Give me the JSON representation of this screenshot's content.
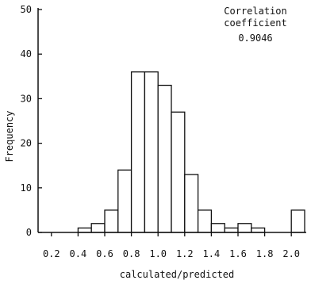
{
  "chart_data": {
    "type": "bar",
    "bin_width": 0.1,
    "bins": [
      {
        "x0": 0.4,
        "x1": 0.5,
        "value": 1
      },
      {
        "x0": 0.5,
        "x1": 0.6,
        "value": 2
      },
      {
        "x0": 0.6,
        "x1": 0.7,
        "value": 5
      },
      {
        "x0": 0.7,
        "x1": 0.8,
        "value": 14
      },
      {
        "x0": 0.8,
        "x1": 0.9,
        "value": 36
      },
      {
        "x0": 0.9,
        "x1": 1.0,
        "value": 36
      },
      {
        "x0": 1.0,
        "x1": 1.1,
        "value": 33
      },
      {
        "x0": 1.1,
        "x1": 1.2,
        "value": 27
      },
      {
        "x0": 1.2,
        "x1": 1.3,
        "value": 13
      },
      {
        "x0": 1.3,
        "x1": 1.4,
        "value": 5
      },
      {
        "x0": 1.4,
        "x1": 1.5,
        "value": 2
      },
      {
        "x0": 1.5,
        "x1": 1.6,
        "value": 1
      },
      {
        "x0": 1.6,
        "x1": 1.7,
        "value": 2
      },
      {
        "x0": 1.7,
        "x1": 1.8,
        "value": 1
      },
      {
        "x0": 2.0,
        "x1": 2.1,
        "value": 5
      }
    ],
    "title": "",
    "xlabel": "calculated/predicted",
    "ylabel": "Frequency",
    "xlim": [
      0.1,
      2.1
    ],
    "ylim": [
      0,
      50
    ],
    "x_ticks": [
      {
        "value": 0.2,
        "label": "0.2"
      },
      {
        "value": 0.4,
        "label": "0.4"
      },
      {
        "value": 0.6,
        "label": "0.6"
      },
      {
        "value": 0.8,
        "label": "0.8"
      },
      {
        "value": 1.0,
        "label": "1.0"
      },
      {
        "value": 1.2,
        "label": "1.2"
      },
      {
        "value": 1.4,
        "label": "1.4"
      },
      {
        "value": 1.6,
        "label": "1.6"
      },
      {
        "value": 1.8,
        "label": "1.8"
      },
      {
        "value": 2.0,
        "label": "2.0"
      }
    ],
    "y_ticks": [
      {
        "value": 0,
        "label": "0"
      },
      {
        "value": 10,
        "label": "10"
      },
      {
        "value": 20,
        "label": "20"
      },
      {
        "value": 30,
        "label": "30"
      },
      {
        "value": 40,
        "label": "40"
      },
      {
        "value": 50,
        "label": "50"
      }
    ],
    "grid": false,
    "annotation": {
      "line1": "Correlation",
      "line2": "coefficient",
      "value": "0.9046"
    },
    "colors": {
      "bar_fill": "#ffffff",
      "bar_stroke": "#111111",
      "axis": "#111111"
    }
  }
}
